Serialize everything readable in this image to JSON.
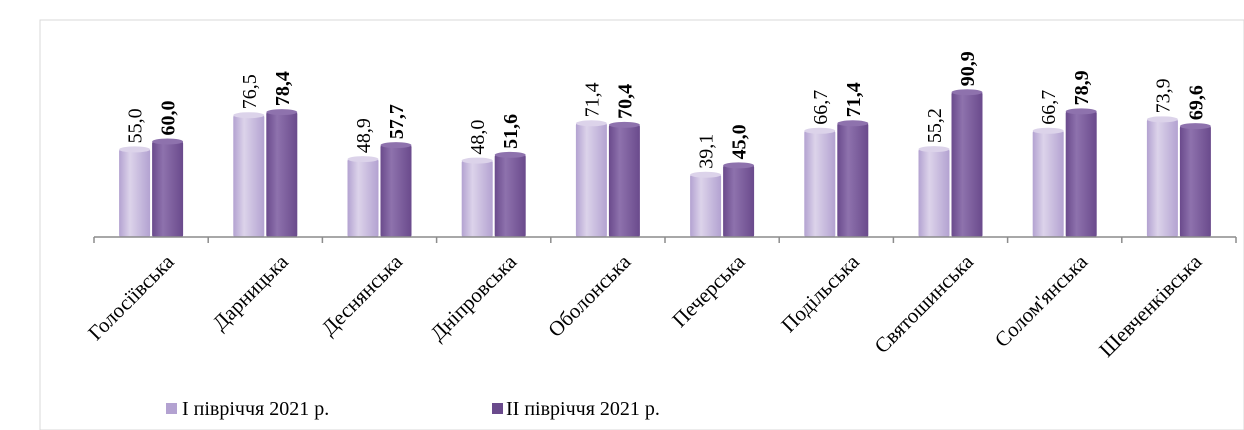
{
  "colors": {
    "series_a": "#b3a2d1",
    "series_a_light": "#dcd3ea",
    "series_b": "#6a4a8c",
    "series_b_light": "#8e72ad",
    "axis": "#8c8c8c",
    "frame": "#d9d9d9"
  },
  "chart_data": {
    "type": "bar",
    "categories": [
      "Голосіївська",
      "Дарницька",
      "Деснянська",
      "Дніпровська",
      "Оболонська",
      "Печерська",
      "Подільська",
      "Святошинська",
      "Солом'янська",
      "Шевченківська"
    ],
    "series": [
      {
        "name": "І півріччя 2021  р.",
        "values": [
          55.0,
          76.5,
          48.9,
          48.0,
          71.4,
          39.1,
          66.7,
          55.2,
          66.7,
          73.9
        ],
        "labels": [
          "55,0",
          "76,5",
          "48,9",
          "48,0",
          "71,4",
          "39,1",
          "66,7",
          "55,2",
          "66,7",
          "73,9"
        ]
      },
      {
        "name": "ІІ півріччя 2021  р.",
        "values": [
          60.0,
          78.4,
          57.7,
          51.6,
          70.4,
          45.0,
          71.4,
          90.9,
          78.9,
          69.6
        ],
        "labels": [
          "60,0",
          "78,4",
          "57,7",
          "51,6",
          "70,4",
          "45,0",
          "71,4",
          "90,9",
          "78,9",
          "69,6"
        ]
      }
    ],
    "ylim": [
      0,
      130
    ],
    "legend": "bottom"
  }
}
